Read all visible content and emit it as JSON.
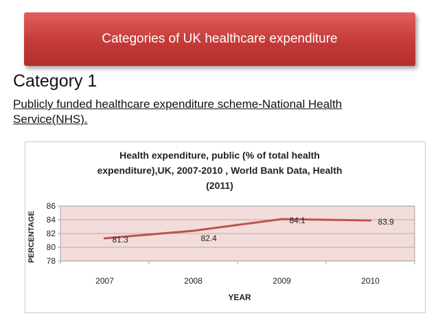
{
  "slide": {
    "title": "Categories of UK healthcare expenditure",
    "heading": "Category 1",
    "subtext_line1": "Publicly funded healthcare expenditure scheme-National Health",
    "subtext_line2": "Service(NHS)."
  },
  "colors": {
    "banner": "#c94442",
    "line": "#c0504d",
    "plot_background": "#f2dcdb"
  },
  "chart_data": {
    "type": "line",
    "title_lines": [
      "Health expenditure, public (% of total health",
      "expenditure),UK, 2007-2010 , World Bank Data, Health",
      "(2011)"
    ],
    "xlabel": "YEAR",
    "ylabel": "PERCENTAGE",
    "categories": [
      "2007",
      "2008",
      "2009",
      "2010"
    ],
    "series": [
      {
        "values": [
          81.3,
          82.4,
          84.1,
          83.9
        ]
      }
    ],
    "data_labels": [
      "81.3",
      "82.4",
      "84.1",
      "83.9"
    ],
    "ylim": [
      78,
      86
    ],
    "yticks": [
      "78",
      "80",
      "82",
      "84",
      "86"
    ],
    "grid": true,
    "legend": "none"
  }
}
